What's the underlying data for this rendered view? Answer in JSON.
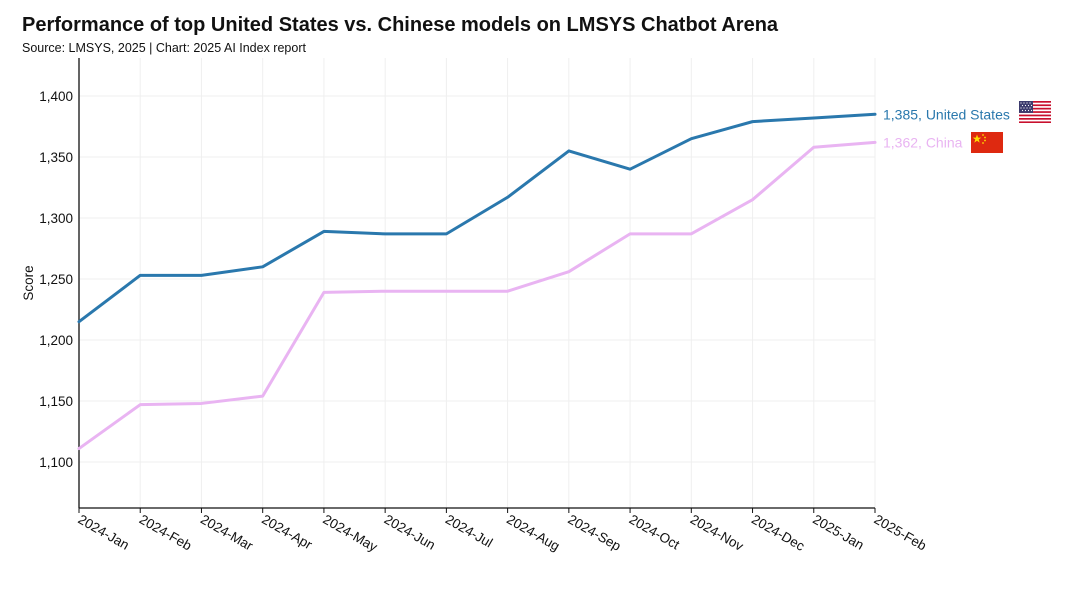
{
  "header": {
    "title": "Performance of top United States vs. Chinese models on LMSYS Chatbot Arena",
    "subtitle": "Source: LMSYS, 2025 | Chart: 2025 AI Index report"
  },
  "chart_data": {
    "type": "line",
    "title": "Performance of top United States vs. Chinese models on LMSYS Chatbot Arena",
    "subtitle": "Source: LMSYS, 2025 | Chart: 2025 AI Index report",
    "xlabel": "",
    "ylabel": "Score",
    "ylim": [
      1062,
      1400
    ],
    "yticks": [
      1100,
      1150,
      1200,
      1250,
      1300,
      1350,
      1400
    ],
    "ytick_labels": [
      "1,100",
      "1,150",
      "1,200",
      "1,250",
      "1,300",
      "1,350",
      "1,400"
    ],
    "grid": true,
    "categories": [
      "2024-Jan",
      "2024-Feb",
      "2024-Mar",
      "2024-Apr",
      "2024-May",
      "2024-Jun",
      "2024-Jul",
      "2024-Aug",
      "2024-Sep",
      "2024-Oct",
      "2024-Nov",
      "2024-Dec",
      "2025-Jan",
      "2025-Feb"
    ],
    "series": [
      {
        "name": "United States",
        "color": "#2a78ad",
        "values": [
          1215,
          1253,
          1253,
          1260,
          1289,
          1287,
          1287,
          1317,
          1355,
          1340,
          1365,
          1379,
          1382,
          1385
        ],
        "end_label": "1,385, United States",
        "flag_icon": "us-flag-icon"
      },
      {
        "name": "China",
        "color": "#e9b4f2",
        "values": [
          1111,
          1147,
          1148,
          1154,
          1239,
          1240,
          1240,
          1240,
          1256,
          1287,
          1287,
          1315,
          1358,
          1362
        ],
        "end_label": "1,362, China",
        "flag_icon": "china-flag-icon"
      }
    ]
  }
}
